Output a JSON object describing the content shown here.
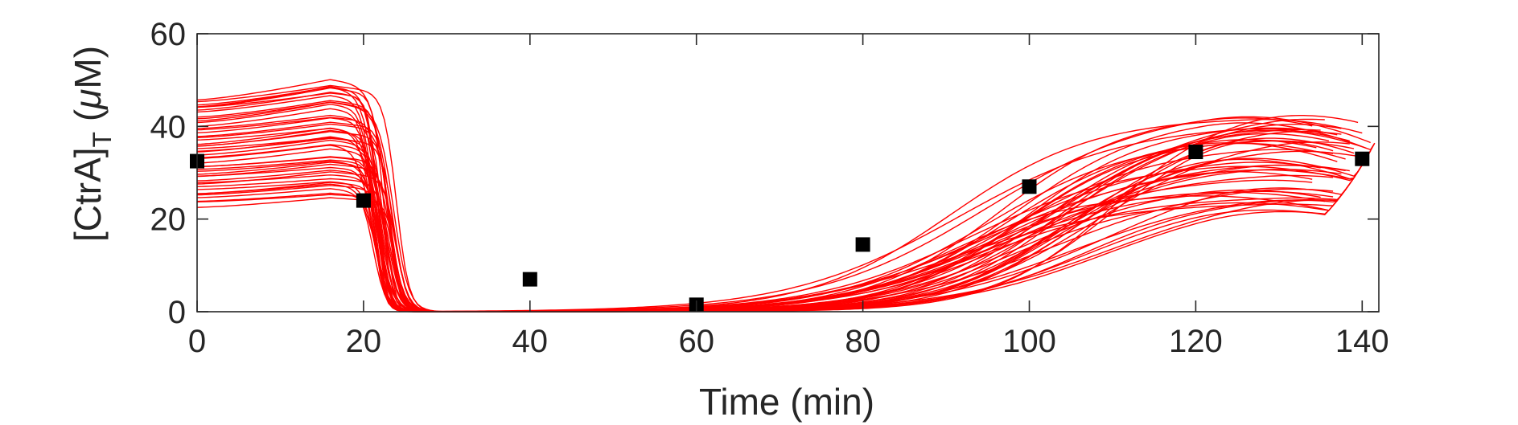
{
  "chart_data": {
    "type": "line",
    "xlabel": "Time (min)",
    "ylabel": {
      "main": "[CtrA]",
      "subscript": "T",
      "unit_open": " (",
      "mu": "μ",
      "unit_rest": "M)"
    },
    "xlim": [
      0,
      142
    ],
    "ylim": [
      0,
      60
    ],
    "xticks": [
      0,
      20,
      40,
      60,
      80,
      100,
      120,
      140
    ],
    "yticks": [
      0,
      20,
      40,
      60
    ],
    "grid": false,
    "legend": "none",
    "colors": {
      "simulations": "#ff0000",
      "data": "#000000",
      "axes": "#262626"
    },
    "simulation_ensemble": {
      "count": 48,
      "initial_range": [
        23,
        46
      ],
      "peak_time": 16,
      "drop_time_range": [
        21,
        26.5
      ],
      "floor_value": 0,
      "rise_onset_range": [
        73,
        80
      ],
      "final_range": [
        23,
        46
      ],
      "end_time_range": [
        134,
        142
      ]
    },
    "series": [
      {
        "name": "",
        "style": "square-markers",
        "x": [
          0,
          20,
          40,
          60,
          80,
          100,
          120,
          140
        ],
        "y": [
          32.5,
          24,
          7,
          1.5,
          14.5,
          27,
          34.5,
          33
        ]
      }
    ]
  }
}
